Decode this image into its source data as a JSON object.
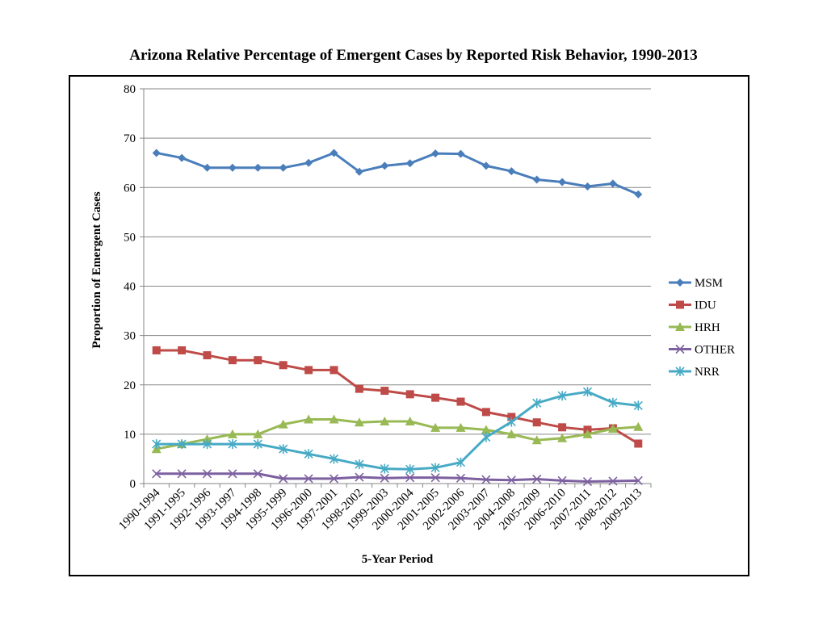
{
  "chart_data": {
    "type": "line",
    "title": "Arizona Relative Percentage of Emergent Cases by Reported Risk Behavior, 1990-2013",
    "xlabel": "5-Year Period",
    "ylabel": "Proportion of Emergent Cases",
    "ylim": [
      0,
      80
    ],
    "yticks": [
      0,
      10,
      20,
      30,
      40,
      50,
      60,
      70,
      80
    ],
    "grid": true,
    "legend_position": "right",
    "categories": [
      "1990-1994",
      "1991-1995",
      "1992-1996",
      "1993-1997",
      "1994-1998",
      "1995-1999",
      "1996-2000",
      "1997-2001",
      "1998-2002",
      "1999-2003",
      "2000-2004",
      "2001-2005",
      "2002-2006",
      "2003-2007",
      "2004-2008",
      "2005-2009",
      "2006-2010",
      "2007-2011",
      "2008-2012",
      "2009-2013"
    ],
    "series": [
      {
        "name": "MSM",
        "color": "#4a7ebb",
        "marker": "diamond",
        "values": [
          67,
          66,
          64,
          64,
          64,
          64,
          65,
          67,
          63.2,
          64.4,
          64.9,
          66.9,
          66.8,
          64.4,
          63.3,
          61.6,
          61.1,
          60.2,
          60.8,
          58.6
        ]
      },
      {
        "name": "IDU",
        "color": "#be4b48",
        "marker": "square",
        "values": [
          27,
          27,
          26,
          25,
          25,
          24,
          23,
          23,
          19.2,
          18.8,
          18.1,
          17.4,
          16.6,
          14.5,
          13.5,
          12.4,
          11.4,
          10.9,
          11.2,
          8.1
        ]
      },
      {
        "name": "HRH",
        "color": "#98b954",
        "marker": "triangle",
        "values": [
          7,
          8,
          9,
          10,
          10,
          12,
          13,
          13,
          12.4,
          12.6,
          12.6,
          11.3,
          11.3,
          10.9,
          10,
          8.8,
          9.2,
          10,
          11.1,
          11.5
        ]
      },
      {
        "name": "OTHER",
        "color": "#7d60a0",
        "marker": "x",
        "values": [
          2,
          2,
          2,
          2,
          2,
          1,
          1,
          1,
          1.3,
          1.1,
          1.2,
          1.2,
          1.1,
          0.8,
          0.7,
          0.9,
          0.6,
          0.4,
          0.5,
          0.6
        ]
      },
      {
        "name": "NRR",
        "color": "#46aac5",
        "marker": "star",
        "values": [
          8,
          8,
          8,
          8,
          8,
          7,
          6,
          5,
          3.9,
          3,
          2.9,
          3.2,
          4.3,
          9.4,
          12.5,
          16.3,
          17.8,
          18.6,
          16.4,
          15.8
        ]
      }
    ]
  }
}
